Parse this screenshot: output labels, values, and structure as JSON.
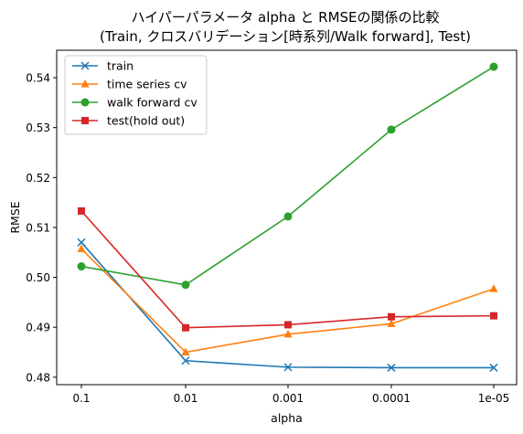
{
  "chart_data": {
    "type": "line",
    "title_line1": "ハイパーパラメータ alpha と RMSEの関係の比較",
    "title_line2": "(Train, クロスバリデーション[時系列/Walk forward], Test)",
    "xlabel": "alpha",
    "ylabel": "RMSE",
    "categories": [
      "0.1",
      "0.01",
      "0.001",
      "0.0001",
      "1e-05"
    ],
    "ylim": [
      0.4785,
      0.5455
    ],
    "yticks": [
      0.48,
      0.49,
      0.5,
      0.51,
      0.52,
      0.53,
      0.54
    ],
    "ytick_labels": [
      "0.48",
      "0.49",
      "0.50",
      "0.51",
      "0.52",
      "0.53",
      "0.54"
    ],
    "grid": false,
    "legend_position": "top-left",
    "series": [
      {
        "name": "train",
        "marker": "x",
        "color": "#1f77b4",
        "values": [
          0.507,
          0.4833,
          0.482,
          0.4819,
          0.4819
        ]
      },
      {
        "name": "time series cv",
        "marker": "triangle",
        "color": "#ff7f0e",
        "values": [
          0.5057,
          0.485,
          0.4886,
          0.4907,
          0.4977
        ]
      },
      {
        "name": "walk forward cv",
        "marker": "circle",
        "color": "#2ca02c",
        "values": [
          0.5022,
          0.4985,
          0.5122,
          0.5296,
          0.5422
        ]
      },
      {
        "name": "test(hold out)",
        "marker": "square",
        "color": "#d62728",
        "values": [
          0.5133,
          0.4899,
          0.4905,
          0.4921,
          0.4923
        ]
      }
    ]
  }
}
